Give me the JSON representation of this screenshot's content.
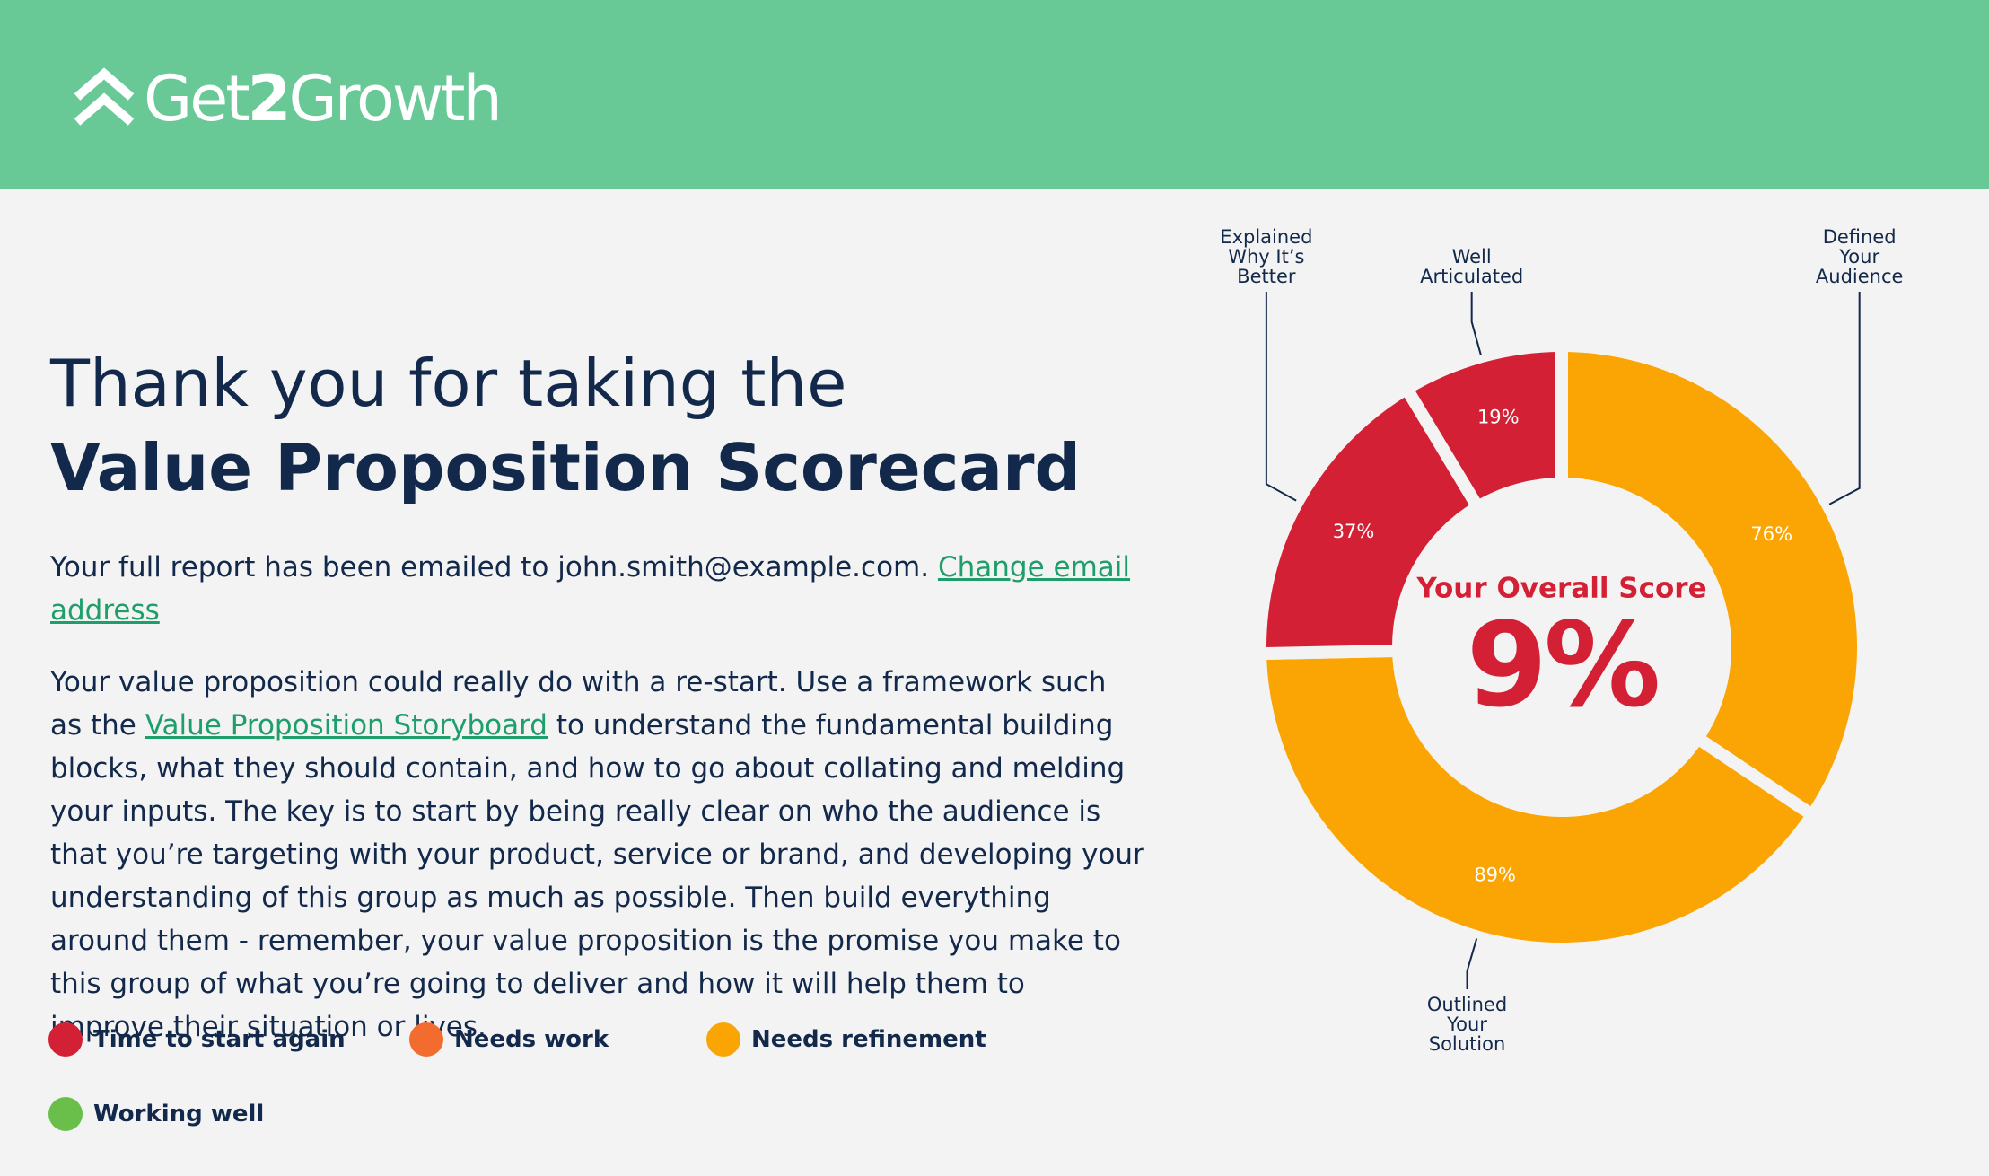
{
  "header": {
    "logo": {
      "start": "Get",
      "digit": "2",
      "end": "Growth"
    }
  },
  "content": {
    "title_line1": "Thank you for taking the",
    "title_line2": "Value Proposition Scorecard",
    "email_text": "Your full report has been emailed to john.smith@example.com.",
    "email_link": "Change email address",
    "advice_start": "Your value proposition could really do with a re-start. Use a framework such as the",
    "advice_link": "Value Proposition Storyboard",
    "advice_end": "to understand the fundamental building blocks, what they should contain, and how to go about collating and melding your inputs. The key is to start by being really clear on who the audience is that you’re targeting with your product, service or brand, and developing your understanding of this group as much as possible. Then build everything around them - remember, your value proposition is the promise you make to this group of what you’re going to deliver and how it will help them to improve their situation or lives."
  },
  "legend": {
    "items": [
      {
        "label": "Time to start again",
        "color": "#d42035"
      },
      {
        "label": "Needs work",
        "color": "#f26b2f"
      },
      {
        "label": "Needs refinement",
        "color": "#fba504"
      },
      {
        "label": "Working well",
        "color": "#6abf4b"
      }
    ]
  },
  "chart_data": {
    "type": "donut",
    "center_title": "Your Overall Score",
    "center_value": 9,
    "center_value_label": "9%",
    "center_color": "#d42035",
    "categories": [
      "Defined Your Audience",
      "Outlined Your Solution",
      "Explained Why It’s Better",
      "Well Articulated"
    ],
    "values": [
      76,
      89,
      37,
      19
    ],
    "value_labels": [
      "76%",
      "89%",
      "37%",
      "19%"
    ],
    "colors": [
      "#fba504",
      "#fba504",
      "#d42035",
      "#d42035"
    ]
  }
}
